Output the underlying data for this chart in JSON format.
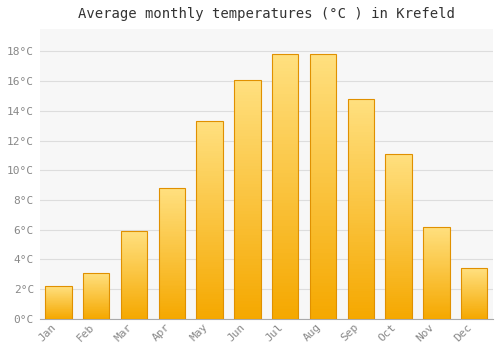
{
  "title": "Average monthly temperatures (°C ) in Krefeld",
  "months": [
    "Jan",
    "Feb",
    "Mar",
    "Apr",
    "May",
    "Jun",
    "Jul",
    "Aug",
    "Sep",
    "Oct",
    "Nov",
    "Dec"
  ],
  "temperatures": [
    2.2,
    3.1,
    5.9,
    8.8,
    13.3,
    16.1,
    17.8,
    17.8,
    14.8,
    11.1,
    6.2,
    3.4
  ],
  "bar_color_bottom": "#F5A800",
  "bar_color_top": "#FFD966",
  "bar_edge_color": "#E09000",
  "ylim": [
    0,
    19.5
  ],
  "yticks": [
    0,
    2,
    4,
    6,
    8,
    10,
    12,
    14,
    16,
    18
  ],
  "ytick_labels": [
    "0°C",
    "2°C",
    "4°C",
    "6°C",
    "8°C",
    "10°C",
    "12°C",
    "14°C",
    "16°C",
    "18°C"
  ],
  "bg_color": "#ffffff",
  "plot_bg_color": "#f7f7f7",
  "grid_color": "#dddddd",
  "title_fontsize": 10,
  "tick_fontsize": 8,
  "bar_width": 0.7,
  "font_family": "monospace"
}
